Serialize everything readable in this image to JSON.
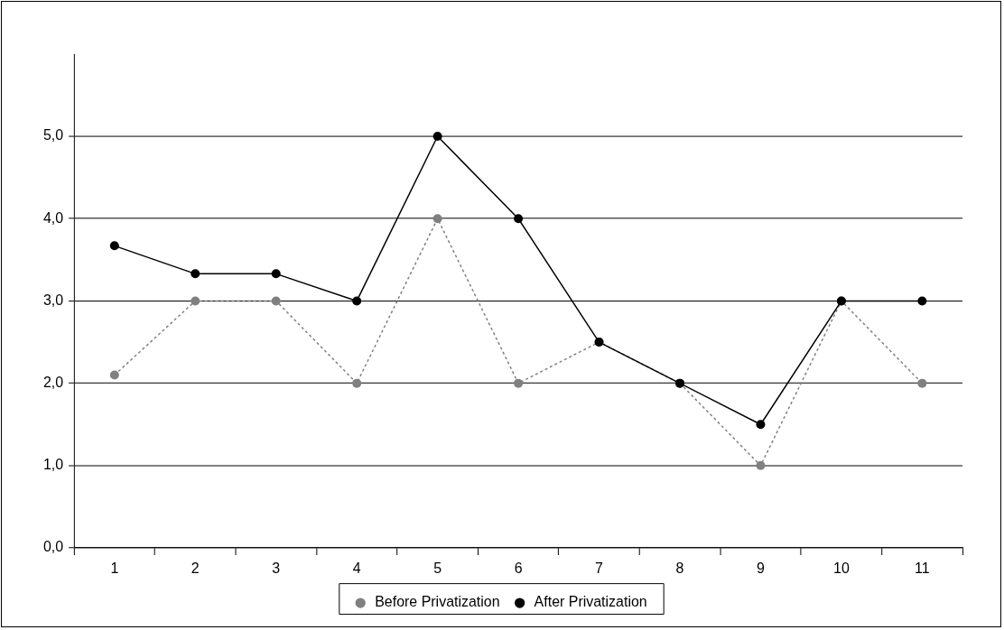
{
  "chart_data": {
    "type": "line",
    "categories": [
      "1",
      "2",
      "3",
      "4",
      "5",
      "6",
      "7",
      "8",
      "9",
      "10",
      "11"
    ],
    "series": [
      {
        "name": "Before Privatization",
        "color": "#808080",
        "line_style": "dotted",
        "marker": "circle",
        "values": [
          2.1,
          3.0,
          3.0,
          2.0,
          4.0,
          2.0,
          2.5,
          2.0,
          1.0,
          3.0,
          2.0
        ]
      },
      {
        "name": "After Privatization",
        "color": "#000000",
        "line_style": "solid",
        "marker": "circle",
        "values": [
          3.67,
          3.33,
          3.33,
          3.0,
          5.0,
          4.0,
          2.5,
          2.0,
          1.5,
          3.0,
          3.0
        ]
      }
    ],
    "ylim": [
      0,
      6
    ],
    "yticks": [
      {
        "value": 0,
        "label": "0,0"
      },
      {
        "value": 1,
        "label": "1,0"
      },
      {
        "value": 2,
        "label": "2,0"
      },
      {
        "value": 3,
        "label": "3,0"
      },
      {
        "value": 4,
        "label": "4,0"
      },
      {
        "value": 5,
        "label": "5,0"
      }
    ],
    "grid": "y",
    "legend": "bottom"
  }
}
